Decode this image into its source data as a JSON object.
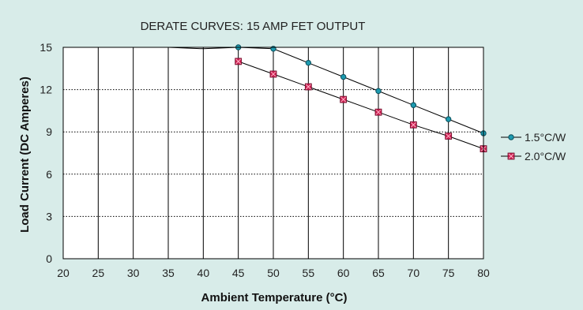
{
  "colors": {
    "panel_background": "#d8ece9",
    "series_1_marker": "#1d9bb0",
    "series_2_marker": "#cc1f52",
    "line": "#000000"
  },
  "chart_data": {
    "type": "line",
    "title": "DERATE CURVES: 15 AMP FET OUTPUT",
    "xlabel": "Ambient Temperature (°C)",
    "ylabel": "Load Current (DC Amperes)",
    "xlim": [
      20,
      80
    ],
    "ylim": [
      0,
      15
    ],
    "x_ticks": [
      20,
      25,
      30,
      35,
      40,
      45,
      50,
      55,
      60,
      65,
      70,
      75,
      80
    ],
    "y_ticks": [
      0,
      3,
      6,
      9,
      12,
      15
    ],
    "grid": {
      "vertical": "solid",
      "horizontal": "dotted"
    },
    "legend_position": "right",
    "series": [
      {
        "name": "1.5°C/W",
        "marker": "circle",
        "x": [
          35,
          40,
          45,
          50,
          55,
          60,
          65,
          70,
          75,
          80
        ],
        "y": [
          15,
          14.9,
          15,
          14.9,
          13.9,
          12.9,
          11.9,
          10.9,
          9.9,
          8.9
        ],
        "marker_from_index": 2
      },
      {
        "name": "2.0°C/W",
        "marker": "square",
        "x": [
          45,
          50,
          55,
          60,
          65,
          70,
          75,
          80
        ],
        "y": [
          14,
          13.1,
          12.2,
          11.3,
          10.4,
          9.5,
          8.7,
          7.8
        ],
        "marker_from_index": 0
      }
    ]
  }
}
